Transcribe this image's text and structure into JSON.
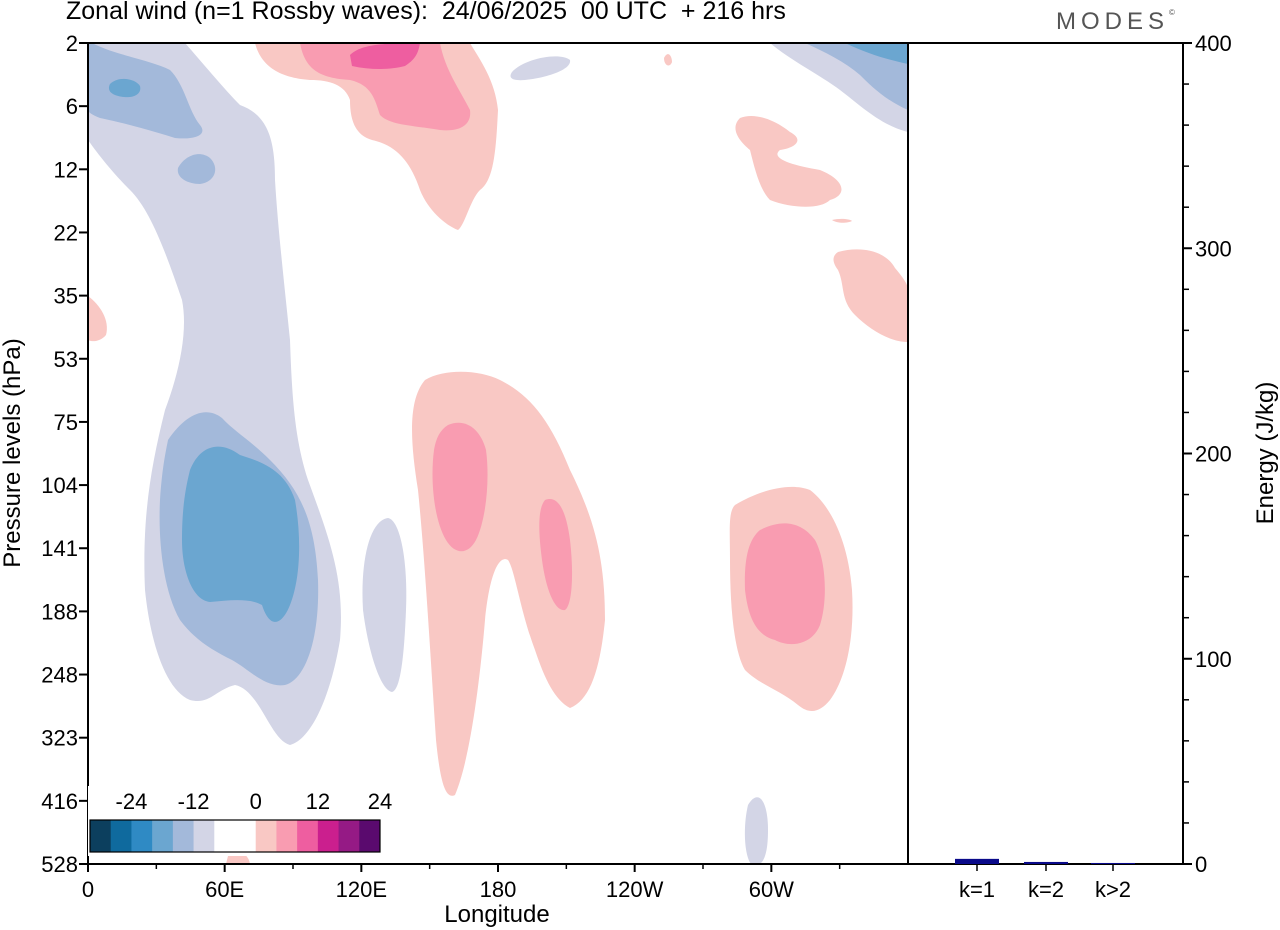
{
  "chart_data": [
    {
      "type": "heatmap",
      "title": "Zonal wind (n=1 Rossby waves):  24/06/2025  00 UTC  + 216 hrs",
      "brand": "MODES",
      "brand_mark": "©",
      "xlabel": "Longitude",
      "ylabel": "Pressure levels (hPa)",
      "x_ticks": [
        "0",
        "60E",
        "120E",
        "180",
        "120W",
        "60W"
      ],
      "x_tick_values": [
        0,
        60,
        120,
        180,
        240,
        300
      ],
      "x_range": [
        0,
        360
      ],
      "y_ticks": [
        "2",
        "6",
        "12",
        "22",
        "35",
        "53",
        "75",
        "104",
        "141",
        "188",
        "248",
        "323",
        "416",
        "528"
      ],
      "y_scale": "pressure levels (ordinal)",
      "colorbar": {
        "ticks": [
          "-24",
          "-12",
          "0",
          "12",
          "24"
        ],
        "colors": [
          "#0c3f5e",
          "#0f6a9e",
          "#2f8ac4",
          "#6ba6d0",
          "#a3b9da",
          "#d3d5e6",
          "#ffffff",
          "#ffffff",
          "#f9c8c4",
          "#f99cb1",
          "#ee5ea0",
          "#cb1f8e",
          "#951a85",
          "#5a0a6e"
        ]
      },
      "features": [
        {
          "sign": "negative",
          "level": -6,
          "lon": [
            0,
            85
          ],
          "p": [
            2,
            416
          ]
        },
        {
          "sign": "negative",
          "level": -18,
          "lon": [
            40,
            95
          ],
          "p": [
            104,
            188
          ]
        },
        {
          "sign": "negative",
          "level": -6,
          "lon": [
            120,
            135
          ],
          "p": [
            141,
            248
          ]
        },
        {
          "sign": "positive",
          "level": 6,
          "lon": [
            140,
            215
          ],
          "p": [
            53,
            416
          ]
        },
        {
          "sign": "positive",
          "level": 12,
          "lon": [
            150,
            210
          ],
          "p": [
            75,
            188
          ]
        },
        {
          "sign": "positive",
          "level": 18,
          "lon": [
            75,
            150
          ],
          "p": [
            2,
            6
          ]
        },
        {
          "sign": "positive",
          "level": 6,
          "lon": [
            280,
            345
          ],
          "p": [
            104,
            248
          ]
        },
        {
          "sign": "positive",
          "level": 12,
          "lon": [
            290,
            330
          ],
          "p": [
            141,
            188
          ]
        },
        {
          "sign": "positive",
          "level": 6,
          "lon": [
            315,
            360
          ],
          "p": [
            22,
            53
          ]
        }
      ]
    },
    {
      "type": "bar",
      "categories": [
        "k=1",
        "k=2",
        "k>2"
      ],
      "values": [
        2.5,
        1.0,
        0.5
      ],
      "ylabel": "Energy (J/kg)",
      "ylim": [
        0,
        400
      ],
      "y_ticks": [
        0,
        100,
        200,
        300,
        400
      ],
      "color": "#0a0a8a"
    }
  ]
}
